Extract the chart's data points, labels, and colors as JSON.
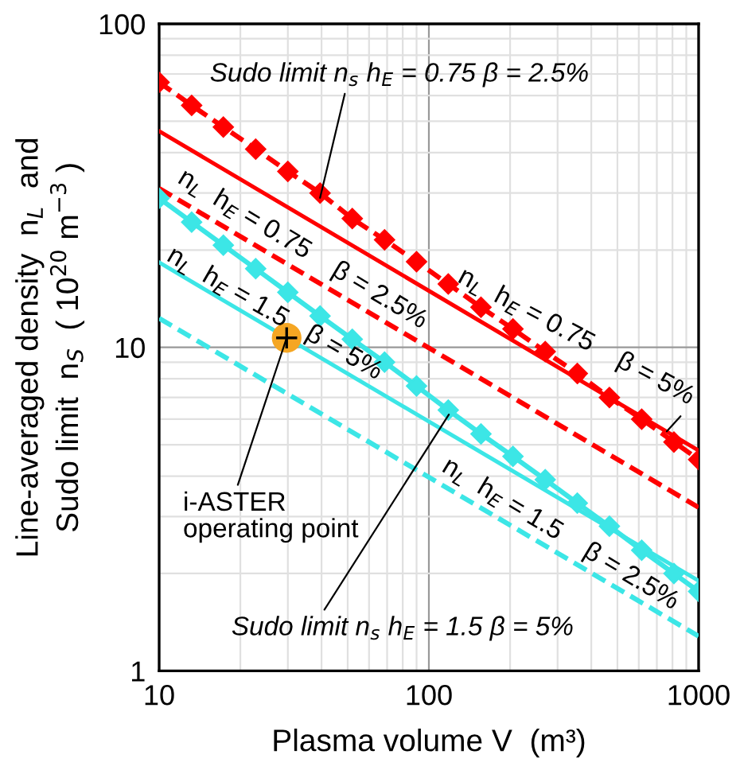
{
  "chart_data": {
    "type": "line",
    "xlabel": "Plasma volume V  (m³)",
    "ylabel": "Line-averaged density  n$_{L}$  and\nSudo limit  n$_{S}$  ( 10$^{20}$ m$^{−3}$ )",
    "log": "xy",
    "xlim": [
      10,
      1000
    ],
    "ylim": [
      1,
      100
    ],
    "xticks": [
      10,
      100,
      1000
    ],
    "yticks": [
      1,
      10,
      100
    ],
    "grid": true,
    "legend": false,
    "series": [
      {
        "color": "#ff0000",
        "line_style": "dashed",
        "marker": "diamond",
        "x": [
          10,
          13.2,
          17.3,
          22.8,
          30,
          39.5,
          52,
          68.5,
          90,
          118,
          156,
          205,
          270,
          355,
          467,
          615,
          810,
          1000
        ],
        "values": [
          66,
          56,
          48,
          41,
          35,
          30,
          25,
          21.5,
          18.4,
          15.7,
          13.3,
          11.4,
          9.7,
          8.3,
          7.0,
          6.0,
          5.1,
          4.5
        ]
      },
      {
        "color": "#ff0000",
        "line_style": "solid",
        "marker": "none",
        "x": [
          10,
          1000
        ],
        "values": [
          46.6,
          4.8
        ]
      },
      {
        "color": "#ff0000",
        "line_style": "dashed",
        "marker": "none",
        "x": [
          10,
          1000
        ],
        "values": [
          31,
          3.2
        ]
      },
      {
        "color": "#3ce6e6",
        "line_style": "solid",
        "marker": "diamond",
        "x": [
          10,
          13.2,
          17.3,
          22.8,
          30,
          39.5,
          52,
          68.5,
          90,
          118,
          156,
          205,
          270,
          355,
          467,
          615,
          810,
          1000
        ],
        "values": [
          28.9,
          24.4,
          20.7,
          17.5,
          14.8,
          12.5,
          10.6,
          9.0,
          7.6,
          6.4,
          5.4,
          4.6,
          3.9,
          3.3,
          2.8,
          2.36,
          2.0,
          1.76
        ]
      },
      {
        "color": "#3ce6e6",
        "line_style": "solid",
        "marker": "none",
        "x": [
          10,
          1000
        ],
        "values": [
          18.3,
          1.9
        ]
      },
      {
        "color": "#3ce6e6",
        "line_style": "dashed",
        "marker": "none",
        "x": [
          10,
          1000
        ],
        "values": [
          12.3,
          1.28
        ]
      },
      {
        "type": "scatter",
        "color": "#f5a623",
        "marker": "circle",
        "x": [
          29.7
        ],
        "values": [
          10.7
        ]
      }
    ],
    "annotations": [
      {
        "text": "Sudo limit n$_{s}$ h$_{E}$ = 0.75 β = 2.5%",
        "x": 39.5,
        "y": 29
      },
      "n$_{L}$  h$_{E}$ = 0.75    β = 2.5%",
      {
        "text": "n$_{L}$  h$_{E}$ = 0.75    β = 5%",
        "x": 762,
        "y": 5.5
      },
      "n$_{L}$  h$_{E}$ = 1.5",
      "β = 5%",
      {
        "text": "i-ASTER\noperating point",
        "x": 29.7,
        "y": 10.7
      },
      "n$_{L}$  h$_{E}$ = 1.5    β = 2.5%",
      {
        "text": "Sudo limit n$_{s}$ h$_{E}$ = 1.5 β = 5%",
        "x": 118.6,
        "y": 6.2
      }
    ]
  }
}
